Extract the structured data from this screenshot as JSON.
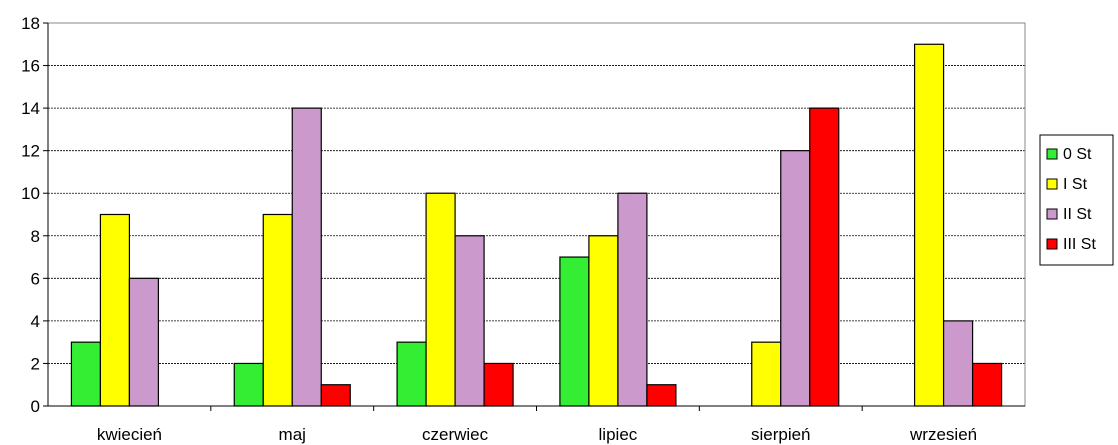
{
  "chart_data": {
    "type": "bar",
    "title": "",
    "xlabel": "",
    "ylabel": "",
    "ylim": [
      0,
      18
    ],
    "yticks": [
      0,
      2,
      4,
      6,
      8,
      10,
      12,
      14,
      16,
      18
    ],
    "grid": true,
    "legend_position": "right",
    "categories": [
      "kwiecień",
      "maj",
      "czerwiec",
      "lipiec",
      "sierpień",
      "wrzesień"
    ],
    "series": [
      {
        "name": "0 St",
        "color": "#33ee33",
        "values": [
          3,
          2,
          3,
          7,
          0,
          0
        ]
      },
      {
        "name": "I St",
        "color": "#ffff00",
        "values": [
          9,
          9,
          10,
          8,
          3,
          17
        ]
      },
      {
        "name": "II St",
        "color": "#cc99cc",
        "values": [
          6,
          14,
          8,
          10,
          12,
          4
        ]
      },
      {
        "name": "III St",
        "color": "#ff0000",
        "values": [
          0,
          1,
          2,
          1,
          14,
          2
        ]
      }
    ]
  }
}
